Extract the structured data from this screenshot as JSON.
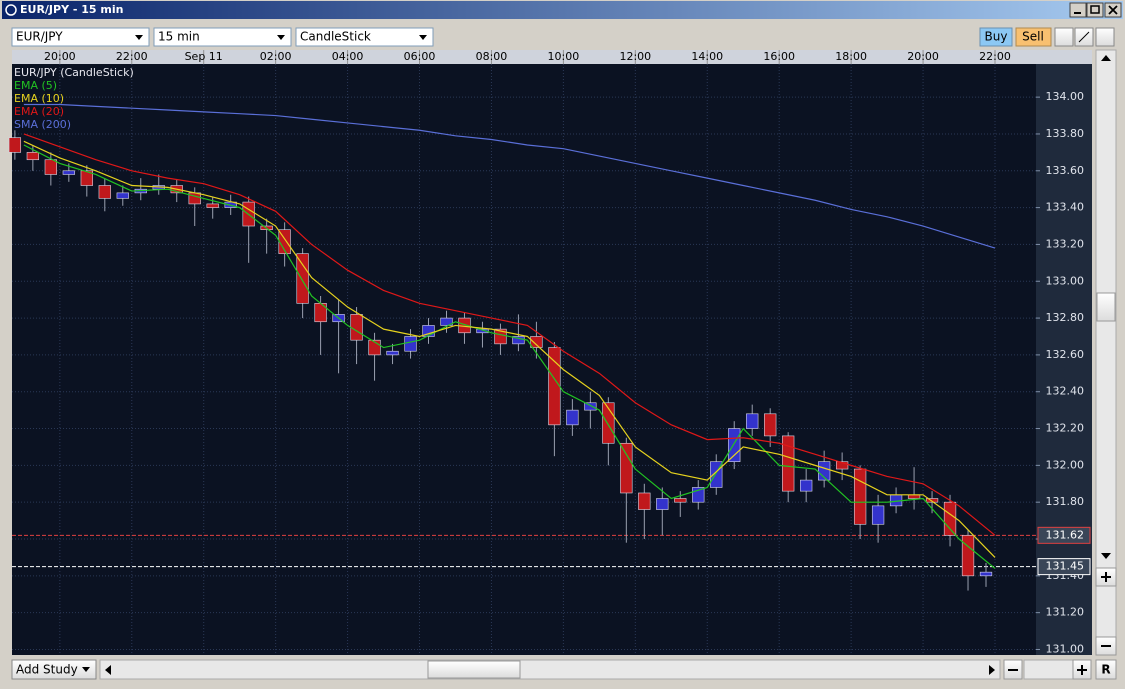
{
  "window": {
    "title": "EUR/JPY - 15 min"
  },
  "toolbar": {
    "symbol": "EUR/JPY",
    "interval": "15 min",
    "chart_style": "CandleStick",
    "buy": "Buy",
    "sell": "Sell"
  },
  "footer": {
    "add_study": "Add Study",
    "reset": "R"
  },
  "chart_data": {
    "type": "candlestick",
    "title": "EUR/JPY (CandleStick)",
    "x": [
      -5.25,
      -4.75,
      -4.25,
      -3.75,
      -3.25,
      -2.75,
      -2.25,
      -1.75,
      -1.25,
      -0.75,
      -0.25,
      0.25,
      0.75,
      1.25,
      1.75,
      2.25,
      2.75,
      3.25,
      3.75,
      4.25,
      4.75,
      5.25,
      5.75,
      6.25,
      6.75,
      7.25,
      7.75,
      8.25,
      8.75,
      9.25,
      9.75,
      10.25,
      10.75,
      11.25,
      11.75,
      12.25,
      12.75,
      13.25,
      13.75,
      14.25,
      14.75,
      15.25,
      15.75,
      16.25,
      16.75,
      17.25,
      17.75,
      18.25,
      18.75,
      19.25,
      19.75,
      20.25,
      20.75,
      21.25,
      21.75
    ],
    "open": [
      133.78,
      133.7,
      133.66,
      133.58,
      133.6,
      133.52,
      133.45,
      133.48,
      133.5,
      133.52,
      133.48,
      133.42,
      133.4,
      133.43,
      133.3,
      133.28,
      133.15,
      132.88,
      132.78,
      132.82,
      132.68,
      132.6,
      132.62,
      132.7,
      132.76,
      132.8,
      132.72,
      132.74,
      132.66,
      132.7,
      132.64,
      132.22,
      132.3,
      132.34,
      132.12,
      131.85,
      131.76,
      131.82,
      131.8,
      131.88,
      132.02,
      132.2,
      132.28,
      132.16,
      131.86,
      131.92,
      132.02,
      131.98,
      131.68,
      131.78,
      131.84,
      131.82,
      131.8,
      131.62,
      131.4
    ],
    "high": [
      133.82,
      133.74,
      133.7,
      133.64,
      133.63,
      133.56,
      133.52,
      133.56,
      133.58,
      133.55,
      133.51,
      133.46,
      133.47,
      133.46,
      133.34,
      133.32,
      133.18,
      132.92,
      132.9,
      132.86,
      132.72,
      132.66,
      132.74,
      132.8,
      132.84,
      132.83,
      132.78,
      132.77,
      132.82,
      132.78,
      132.67,
      132.36,
      132.4,
      132.37,
      132.15,
      131.9,
      131.88,
      131.86,
      131.92,
      132.06,
      132.24,
      132.33,
      132.31,
      132.18,
      131.98,
      132.08,
      132.07,
      132.0,
      131.84,
      131.88,
      131.99,
      131.86,
      131.84,
      131.65,
      131.47
    ],
    "low": [
      133.66,
      133.6,
      133.52,
      133.54,
      133.46,
      133.38,
      133.41,
      133.44,
      133.47,
      133.43,
      133.3,
      133.34,
      133.36,
      133.1,
      133.15,
      133.08,
      132.8,
      132.6,
      132.5,
      132.55,
      132.46,
      132.55,
      132.58,
      132.66,
      132.72,
      132.66,
      132.64,
      132.6,
      132.62,
      132.58,
      132.05,
      132.16,
      132.2,
      132.0,
      131.58,
      131.6,
      131.62,
      131.72,
      131.76,
      131.84,
      131.98,
      132.16,
      132.1,
      131.8,
      131.8,
      131.88,
      131.92,
      131.6,
      131.58,
      131.74,
      131.76,
      131.74,
      131.56,
      131.32,
      131.34
    ],
    "close": [
      133.7,
      133.66,
      133.58,
      133.6,
      133.52,
      133.45,
      133.48,
      133.5,
      133.52,
      133.48,
      133.42,
      133.4,
      133.43,
      133.3,
      133.28,
      133.15,
      132.88,
      132.78,
      132.82,
      132.68,
      132.6,
      132.62,
      132.7,
      132.76,
      132.8,
      132.72,
      132.74,
      132.66,
      132.7,
      132.64,
      132.22,
      132.3,
      132.34,
      132.12,
      131.85,
      131.76,
      131.82,
      131.8,
      131.88,
      132.02,
      132.2,
      132.28,
      132.16,
      131.86,
      131.92,
      132.02,
      131.98,
      131.68,
      131.78,
      131.84,
      131.82,
      131.8,
      131.62,
      131.4,
      131.42
    ],
    "up_color": "#3333cc",
    "down_color": "#c0181c",
    "series": [
      {
        "name": "EMA (5)",
        "color": "#22c322",
        "x": [
          -5,
          -4,
          -3,
          -2,
          -1,
          0,
          1,
          2,
          3,
          4,
          5,
          6,
          7,
          8,
          9,
          10,
          11,
          12,
          13,
          14,
          15,
          16,
          17,
          18,
          19,
          20,
          21,
          22
        ],
        "values": [
          133.74,
          133.64,
          133.58,
          133.49,
          133.5,
          133.45,
          133.4,
          133.25,
          132.92,
          132.76,
          132.64,
          132.68,
          132.78,
          132.72,
          132.68,
          132.4,
          132.3,
          131.98,
          131.82,
          131.88,
          132.2,
          132.0,
          131.98,
          131.8,
          131.8,
          131.82,
          131.6,
          131.44
        ]
      },
      {
        "name": "EMA (10)",
        "color": "#e6d21e",
        "x": [
          -5,
          -4,
          -3,
          -2,
          -1,
          0,
          1,
          2,
          3,
          4,
          5,
          6,
          7,
          8,
          9,
          10,
          11,
          12,
          13,
          14,
          15,
          16,
          17,
          18,
          19,
          20,
          21,
          22
        ],
        "values": [
          133.76,
          133.67,
          133.6,
          133.52,
          133.51,
          133.47,
          133.42,
          133.3,
          133.02,
          132.86,
          132.74,
          132.7,
          132.76,
          132.74,
          132.7,
          132.52,
          132.38,
          132.1,
          131.96,
          131.92,
          132.1,
          132.06,
          132.0,
          131.94,
          131.84,
          131.84,
          131.7,
          131.5
        ]
      },
      {
        "name": "EMA (20)",
        "color": "#e01818",
        "x": [
          -5,
          -4,
          -3,
          -2,
          -1,
          0,
          1,
          2,
          3,
          4,
          5,
          6,
          7,
          8,
          9,
          10,
          11,
          12,
          13,
          14,
          15,
          16,
          17,
          18,
          19,
          20,
          21,
          22
        ],
        "values": [
          133.8,
          133.73,
          133.66,
          133.6,
          133.56,
          133.53,
          133.47,
          133.38,
          133.2,
          133.06,
          132.95,
          132.88,
          132.84,
          132.8,
          132.76,
          132.62,
          132.5,
          132.34,
          132.22,
          132.14,
          132.15,
          132.12,
          132.06,
          132.0,
          131.94,
          131.9,
          131.78,
          131.62
        ]
      },
      {
        "name": "SMA (200)",
        "color": "#5a6fd8",
        "x": [
          -5,
          -4,
          -3,
          -2,
          -1,
          0,
          1,
          2,
          3,
          4,
          5,
          6,
          7,
          8,
          9,
          10,
          11,
          12,
          13,
          14,
          15,
          16,
          17,
          18,
          19,
          20,
          21,
          22
        ],
        "values": [
          133.96,
          133.96,
          133.95,
          133.94,
          133.93,
          133.92,
          133.91,
          133.9,
          133.88,
          133.86,
          133.84,
          133.82,
          133.79,
          133.77,
          133.74,
          133.72,
          133.68,
          133.64,
          133.6,
          133.56,
          133.52,
          133.48,
          133.44,
          133.39,
          133.35,
          133.3,
          133.24,
          133.18
        ]
      }
    ],
    "xlim": [
      -5.33,
      23.14
    ],
    "xticks": [
      {
        "value": -4,
        "label": "20:00"
      },
      {
        "value": -2,
        "label": "22:00"
      },
      {
        "value": 0,
        "label": "Sep 11"
      },
      {
        "value": 2,
        "label": "02:00"
      },
      {
        "value": 4,
        "label": "04:00"
      },
      {
        "value": 6,
        "label": "06:00"
      },
      {
        "value": 8,
        "label": "08:00"
      },
      {
        "value": 10,
        "label": "10:00"
      },
      {
        "value": 12,
        "label": "12:00"
      },
      {
        "value": 14,
        "label": "14:00"
      },
      {
        "value": 16,
        "label": "16:00"
      },
      {
        "value": 18,
        "label": "18:00"
      },
      {
        "value": 20,
        "label": "20:00"
      },
      {
        "value": 22,
        "label": "22:00"
      }
    ],
    "ylim": [
      130.97,
      134.18
    ],
    "yticks": [
      {
        "value": 131,
        "label": "131.00"
      },
      {
        "value": 131.2,
        "label": "131.20"
      },
      {
        "value": 131.4,
        "label": "131.40"
      },
      {
        "value": 131.6,
        "label": "131.60"
      },
      {
        "value": 131.8,
        "label": "131.80"
      },
      {
        "value": 132,
        "label": "132.00"
      },
      {
        "value": 132.2,
        "label": "132.20"
      },
      {
        "value": 132.4,
        "label": "132.40"
      },
      {
        "value": 132.6,
        "label": "132.60"
      },
      {
        "value": 132.8,
        "label": "132.80"
      },
      {
        "value": 133,
        "label": "133.00"
      },
      {
        "value": 133.2,
        "label": "133.20"
      },
      {
        "value": 133.4,
        "label": "133.40"
      },
      {
        "value": 133.6,
        "label": "133.60"
      },
      {
        "value": 133.8,
        "label": "133.80"
      },
      {
        "value": 134,
        "label": "134.00"
      }
    ],
    "grid": true,
    "price_lines": [
      {
        "value": 131.62,
        "label": "131.62",
        "color": "#e04040"
      },
      {
        "value": 131.45,
        "label": "131.45",
        "color": "#ffffff"
      }
    ]
  }
}
